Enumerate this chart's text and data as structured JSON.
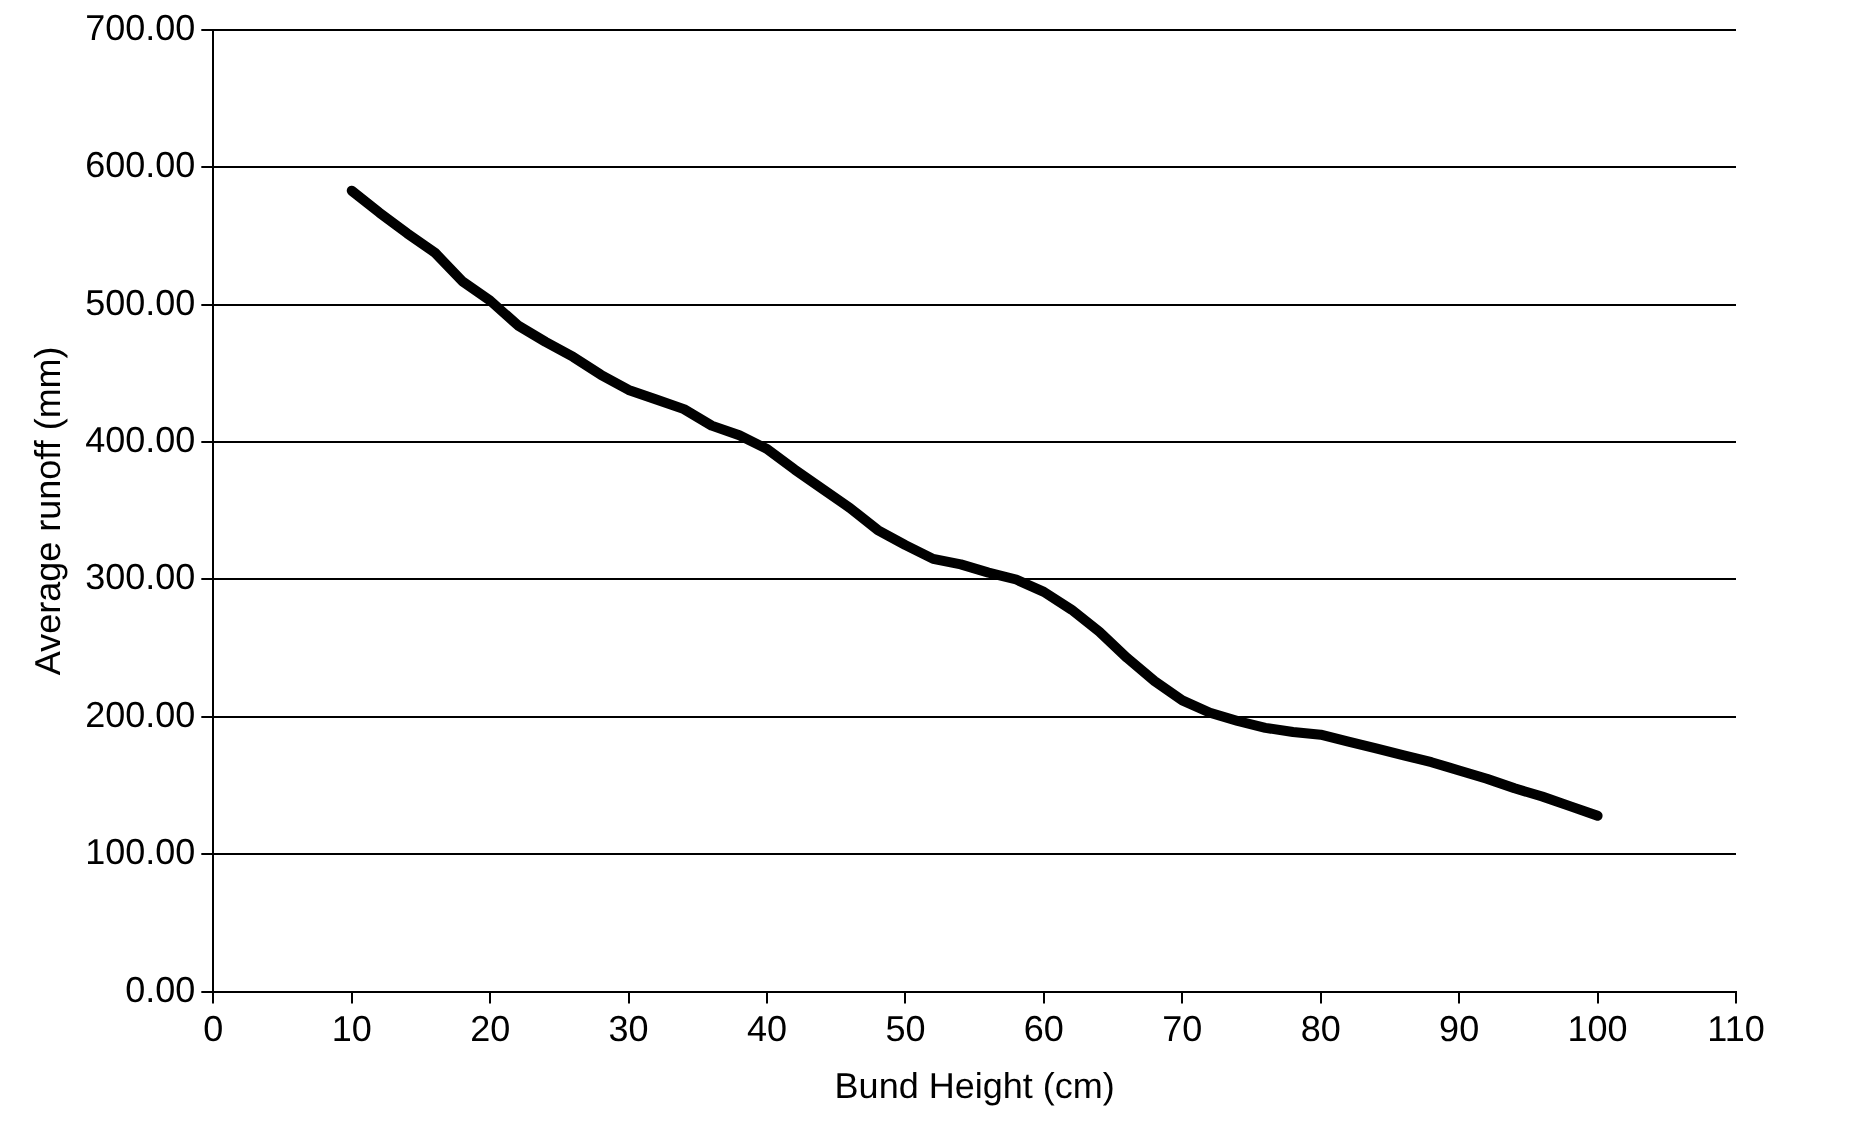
{
  "chart_data": {
    "type": "line",
    "xlabel": "Bund Height (cm)",
    "ylabel": "Average runoff (mm)",
    "x": [
      10,
      12,
      14,
      16,
      18,
      20,
      22,
      24,
      26,
      28,
      30,
      32,
      34,
      36,
      38,
      40,
      42,
      44,
      46,
      48,
      50,
      52,
      54,
      56,
      58,
      60,
      62,
      64,
      66,
      68,
      70,
      72,
      74,
      76,
      78,
      80,
      82,
      84,
      86,
      88,
      90,
      92,
      94,
      96,
      98,
      100
    ],
    "series": [
      {
        "color": "#000000",
        "values": [
          583,
          567,
          552,
          538,
          517,
          503,
          485,
          473,
          462,
          449,
          438,
          431,
          424,
          412,
          405,
          395,
          380,
          366,
          352,
          336,
          325,
          315,
          311,
          305,
          300,
          291,
          278,
          262,
          243,
          226,
          212,
          203,
          197,
          192,
          189,
          187,
          182,
          177,
          172,
          167,
          161,
          155,
          148,
          142,
          135,
          128
        ]
      }
    ],
    "xlim": [
      0,
      110
    ],
    "xticks": [
      0,
      10,
      20,
      30,
      40,
      50,
      60,
      70,
      80,
      90,
      100,
      110
    ],
    "ylim": [
      0,
      700
    ],
    "yticks": [
      {
        "value": 0,
        "label": "0.00"
      },
      {
        "value": 100,
        "label": "100.00"
      },
      {
        "value": 200,
        "label": "200.00"
      },
      {
        "value": 300,
        "label": "300.00"
      },
      {
        "value": 400,
        "label": "400.00"
      },
      {
        "value": 500,
        "label": "500.00"
      },
      {
        "value": 600,
        "label": "600.00"
      },
      {
        "value": 700,
        "label": "700.00"
      }
    ],
    "grid": "y",
    "legend": false,
    "marker": "none",
    "line_style": "solid"
  }
}
